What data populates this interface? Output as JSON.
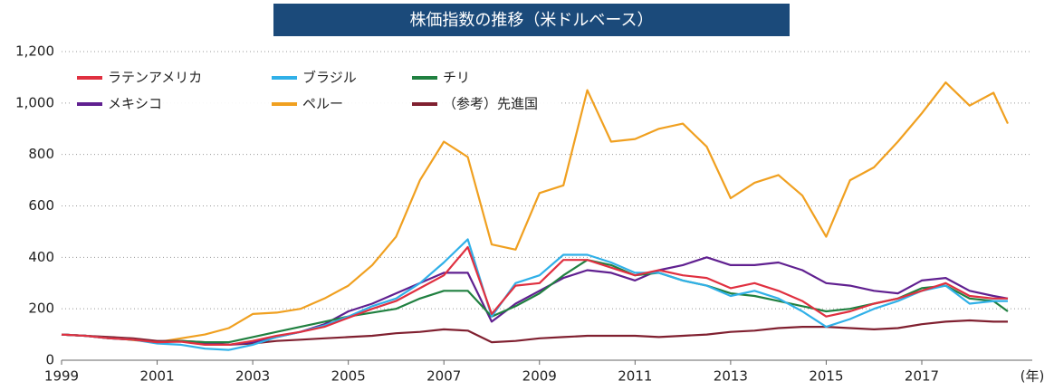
{
  "chart_data": {
    "type": "line",
    "title": "株価指数の推移（米ドルベース）",
    "x_unit": "(年)",
    "x": [
      1999,
      1999.5,
      2000,
      2000.5,
      2001,
      2001.5,
      2002,
      2002.5,
      2003,
      2003.5,
      2004,
      2004.5,
      2005,
      2005.5,
      2006,
      2006.5,
      2007,
      2007.5,
      2008,
      2008.5,
      2009,
      2009.5,
      2010,
      2010.5,
      2011,
      2011.5,
      2012,
      2012.5,
      2013,
      2013.5,
      2014,
      2014.5,
      2015,
      2015.5,
      2016,
      2016.5,
      2017,
      2017.5,
      2018,
      2018.5,
      2018.8
    ],
    "xlim": [
      1999,
      2018.8
    ],
    "xticks": [
      1999,
      2001,
      2003,
      2005,
      2007,
      2009,
      2011,
      2013,
      2015,
      2017
    ],
    "ylim": [
      0,
      1200
    ],
    "yticks": [
      0,
      200,
      400,
      600,
      800,
      {
        "value": 1000,
        "label": "1,000"
      },
      {
        "value": 1200,
        "label": "1,200"
      }
    ],
    "grid": true,
    "legend": "upper left",
    "series": [
      {
        "name": "ラテンアメリカ",
        "color": "#e03040",
        "values": [
          100,
          95,
          85,
          80,
          70,
          72,
          60,
          60,
          75,
          95,
          110,
          130,
          165,
          200,
          230,
          280,
          330,
          440,
          180,
          290,
          300,
          390,
          390,
          360,
          330,
          350,
          330,
          320,
          280,
          300,
          270,
          230,
          170,
          190,
          220,
          240,
          270,
          300,
          250,
          240,
          240
        ]
      },
      {
        "name": "ブラジル",
        "color": "#30b0e8",
        "values": [
          100,
          95,
          85,
          80,
          65,
          60,
          45,
          40,
          60,
          90,
          110,
          135,
          170,
          210,
          240,
          300,
          380,
          470,
          170,
          300,
          330,
          410,
          410,
          380,
          340,
          340,
          310,
          290,
          250,
          270,
          240,
          190,
          130,
          160,
          200,
          230,
          270,
          290,
          220,
          230,
          230
        ]
      },
      {
        "name": "チリ",
        "color": "#208040",
        "values": [
          100,
          95,
          85,
          80,
          70,
          75,
          70,
          70,
          90,
          110,
          130,
          150,
          170,
          185,
          200,
          240,
          270,
          270,
          170,
          210,
          260,
          330,
          390,
          370,
          330,
          340,
          310,
          290,
          260,
          250,
          230,
          210,
          190,
          200,
          220,
          240,
          280,
          290,
          240,
          230,
          190
        ]
      },
      {
        "name": "メキシコ",
        "color": "#602090",
        "values": [
          100,
          95,
          85,
          80,
          70,
          75,
          65,
          60,
          70,
          90,
          110,
          140,
          190,
          220,
          260,
          300,
          340,
          340,
          150,
          220,
          270,
          320,
          350,
          340,
          310,
          350,
          370,
          400,
          370,
          370,
          380,
          350,
          300,
          290,
          270,
          260,
          310,
          320,
          270,
          250,
          240
        ]
      },
      {
        "name": "ペルー",
        "color": "#f0a020",
        "values": [
          100,
          95,
          88,
          78,
          70,
          85,
          100,
          125,
          180,
          185,
          200,
          240,
          290,
          370,
          480,
          700,
          850,
          790,
          450,
          430,
          650,
          680,
          1050,
          850,
          860,
          900,
          920,
          830,
          630,
          690,
          720,
          640,
          480,
          700,
          750,
          850,
          960,
          1080,
          990,
          1040,
          920
        ]
      },
      {
        "name": "（参考）先進国",
        "color": "#802030",
        "values": [
          100,
          95,
          90,
          85,
          75,
          75,
          70,
          60,
          65,
          75,
          80,
          85,
          90,
          95,
          105,
          110,
          120,
          115,
          70,
          75,
          85,
          90,
          95,
          95,
          95,
          90,
          95,
          100,
          110,
          115,
          125,
          130,
          130,
          125,
          120,
          125,
          140,
          150,
          155,
          150,
          150
        ]
      }
    ]
  }
}
